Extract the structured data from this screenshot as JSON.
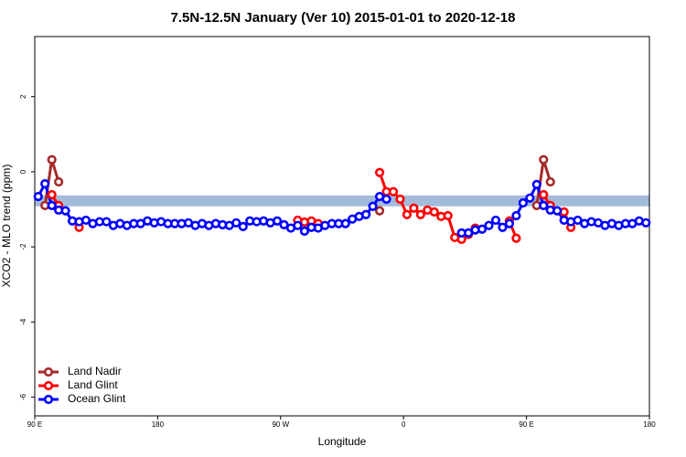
{
  "chart_data": {
    "type": "line",
    "title": "7.5N-12.5N January (Ver 10)   2015-01-01 to 2020-12-18",
    "xlabel": "Longitude",
    "ylabel": "XCO2 - MLO trend (ppm)",
    "xlim": [
      90,
      540
    ],
    "ylim": [
      -6.5,
      3.6
    ],
    "xticks": [
      {
        "value": 90,
        "label": "90 E"
      },
      180,
      {
        "value": 270,
        "label": "90 W"
      },
      {
        "value": 360,
        "label": "0"
      },
      {
        "value": 450,
        "label": "90 E"
      },
      {
        "value": 540,
        "label": "180"
      }
    ],
    "yticks": [
      -6,
      -4,
      -2,
      0,
      2
    ],
    "band": [
      -0.92,
      -0.63
    ],
    "band_color": "#a3bbdb",
    "legend": "bottom-left",
    "x": [
      92.5,
      97.5,
      102.5,
      107.5,
      112.5,
      117.5,
      122.5,
      127.5,
      132.5,
      137.5,
      142.5,
      147.5,
      152.5,
      157.5,
      162.5,
      167.5,
      172.5,
      177.5,
      182.5,
      187.5,
      192.5,
      197.5,
      202.5,
      207.5,
      212.5,
      217.5,
      222.5,
      227.5,
      232.5,
      237.5,
      242.5,
      247.5,
      252.5,
      257.5,
      262.5,
      267.5,
      272.5,
      277.5,
      282.5,
      287.5,
      292.5,
      297.5,
      302.5,
      307.5,
      312.5,
      317.5,
      322.5,
      327.5,
      332.5,
      337.5,
      342.5,
      347.5,
      352.5,
      357.5,
      362.5,
      367.5,
      372.5,
      377.5,
      382.5,
      387.5,
      392.5,
      397.5,
      402.5,
      407.5,
      412.5,
      417.5,
      422.5,
      427.5,
      432.5,
      437.5,
      442.5,
      447.5,
      452.5,
      457.5,
      462.5,
      467.5,
      472.5,
      477.5,
      482.5,
      487.5,
      492.5,
      497.5,
      502.5,
      507.5,
      512.5,
      517.5,
      522.5,
      527.5,
      532.5,
      537.5
    ],
    "series": [
      {
        "name": "Land Nadir",
        "color": "#a52a2a",
        "values": [
          null,
          -0.9,
          0.32,
          -0.27,
          null,
          null,
          null,
          null,
          null,
          null,
          null,
          null,
          null,
          null,
          null,
          null,
          null,
          null,
          null,
          null,
          null,
          null,
          null,
          null,
          null,
          null,
          null,
          null,
          null,
          null,
          null,
          null,
          null,
          null,
          null,
          null,
          null,
          null,
          null,
          null,
          null,
          null,
          null,
          null,
          null,
          null,
          null,
          null,
          null,
          null,
          -1.04,
          null,
          null,
          null,
          null,
          null,
          null,
          null,
          null,
          null,
          null,
          null,
          null,
          null,
          null,
          null,
          null,
          null,
          null,
          null,
          null,
          null,
          null,
          -0.9,
          0.32,
          -0.27,
          null,
          null,
          null,
          null,
          null,
          null,
          null,
          null,
          null,
          null,
          null,
          null,
          null,
          null
        ]
      },
      {
        "name": "Land Glint",
        "color": "#ff0000",
        "values": [
          null,
          null,
          -0.61,
          -0.9,
          null,
          null,
          -1.48,
          null,
          null,
          null,
          null,
          null,
          null,
          null,
          null,
          null,
          null,
          null,
          null,
          null,
          null,
          null,
          null,
          null,
          null,
          null,
          null,
          null,
          null,
          null,
          null,
          null,
          null,
          null,
          null,
          null,
          null,
          null,
          -1.29,
          -1.34,
          -1.31,
          -1.38,
          null,
          null,
          null,
          null,
          null,
          null,
          null,
          null,
          -0.02,
          -0.53,
          -0.53,
          -0.73,
          -1.14,
          -0.97,
          -1.14,
          -1.02,
          -1.07,
          -1.19,
          -1.17,
          -1.75,
          -1.8,
          -1.67,
          -1.5,
          null,
          null,
          null,
          null,
          -1.31,
          -1.77,
          null,
          null,
          null,
          -0.61,
          -0.9,
          null,
          -1.07,
          -1.48,
          null,
          null,
          null,
          null,
          null,
          null,
          null,
          null,
          null,
          null,
          null
        ]
      },
      {
        "name": "Ocean Glint",
        "color": "#0000ff",
        "values": [
          -0.66,
          -0.32,
          -0.9,
          -1.02,
          -1.04,
          -1.31,
          -1.33,
          -1.29,
          -1.38,
          -1.33,
          -1.33,
          -1.43,
          -1.38,
          -1.43,
          -1.38,
          -1.38,
          -1.31,
          -1.36,
          -1.33,
          -1.38,
          -1.38,
          -1.38,
          -1.36,
          -1.43,
          -1.38,
          -1.43,
          -1.38,
          -1.41,
          -1.43,
          -1.36,
          -1.46,
          -1.31,
          -1.33,
          -1.31,
          -1.36,
          -1.31,
          -1.41,
          -1.5,
          -1.43,
          -1.58,
          -1.48,
          -1.5,
          -1.43,
          -1.38,
          -1.38,
          -1.38,
          -1.26,
          -1.19,
          -1.14,
          -0.92,
          -0.66,
          -0.73,
          null,
          null,
          null,
          null,
          null,
          null,
          null,
          null,
          null,
          null,
          -1.63,
          -1.63,
          -1.55,
          -1.53,
          -1.43,
          -1.29,
          -1.48,
          -1.38,
          -1.17,
          -0.83,
          -0.7,
          -0.34,
          -0.9,
          -1.02,
          -1.04,
          -1.29,
          -1.33,
          -1.29,
          -1.38,
          -1.33,
          -1.36,
          -1.43,
          -1.38,
          -1.43,
          -1.38,
          -1.38,
          -1.31,
          -1.36
        ]
      }
    ]
  }
}
